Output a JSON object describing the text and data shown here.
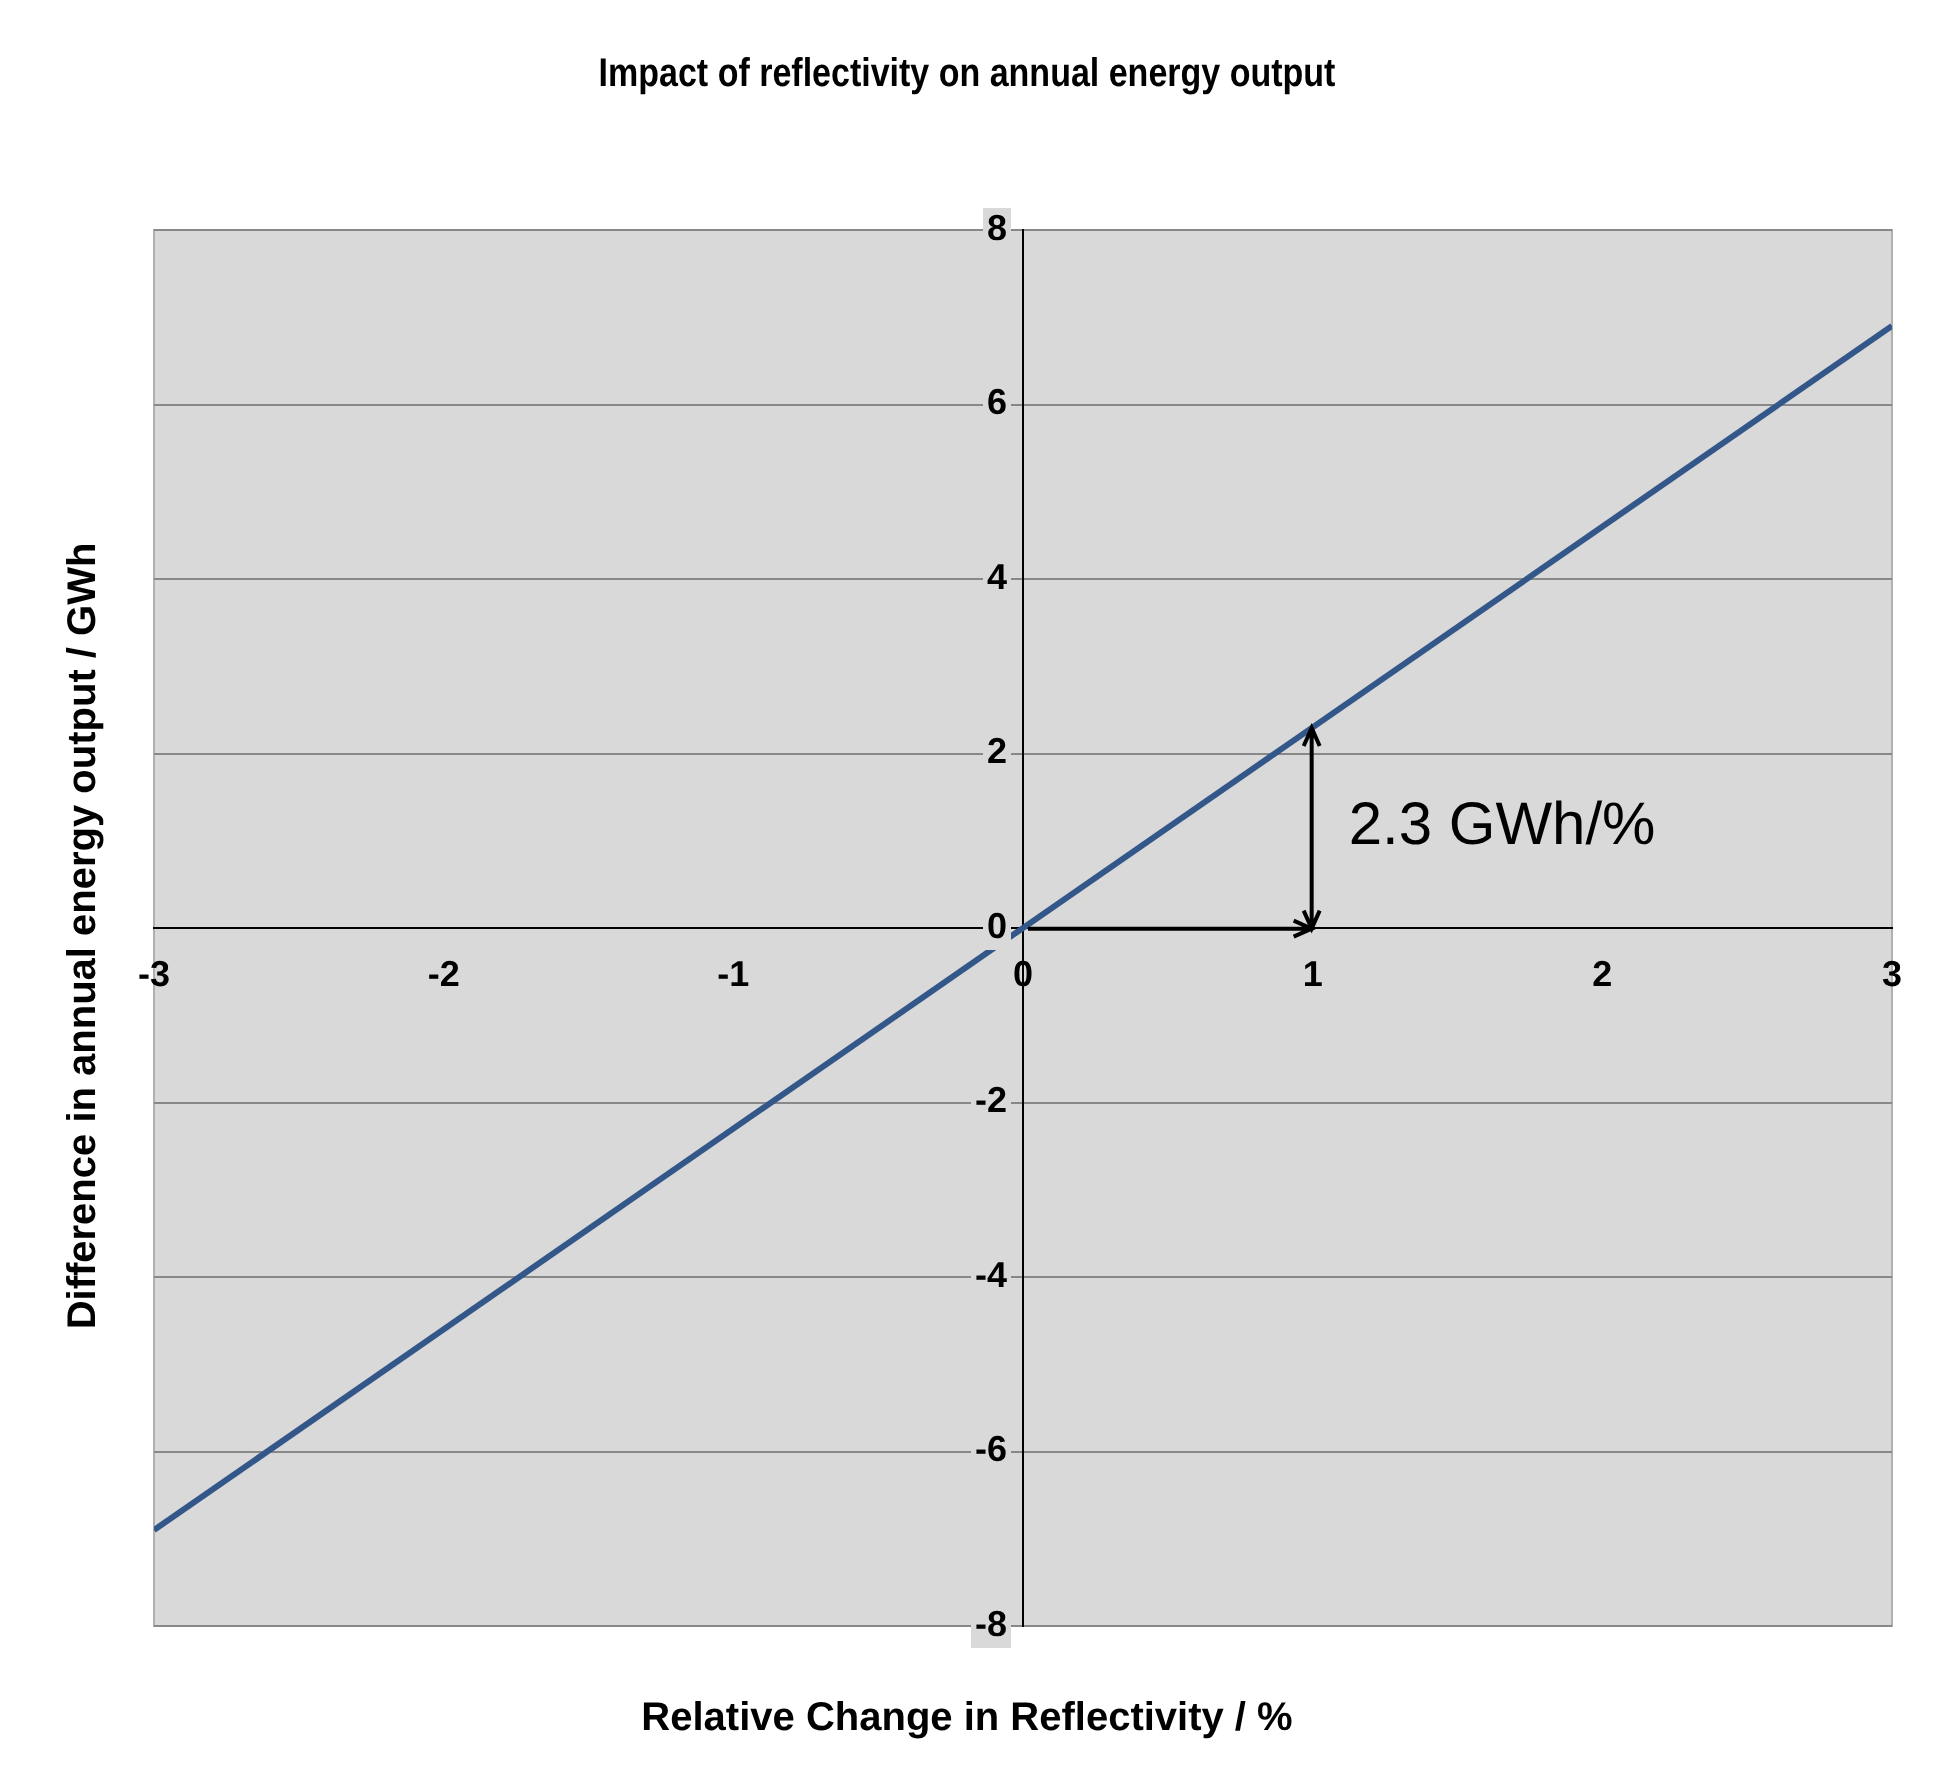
{
  "chart_data": {
    "type": "line",
    "title": "Impact of reflectivity on annual energy output",
    "xlabel": "Relative Change in Reflectivity / %",
    "ylabel": "Difference in annual energy output  / GWh",
    "x": [
      -3,
      3
    ],
    "series": [
      {
        "color": "#34578a",
        "values": [
          -6.9,
          6.9
        ]
      }
    ],
    "xlim": [
      -3,
      3
    ],
    "xticks": [
      -3,
      -2,
      -1,
      0,
      1,
      2,
      3
    ],
    "ylim": [
      -8,
      8
    ],
    "yticks": [
      -8,
      -6,
      -4,
      -2,
      0,
      2,
      4,
      6,
      8
    ],
    "grid": "y",
    "legend": false,
    "marker": "none",
    "line_style": "solid",
    "annotations": [
      {
        "text": "2.3 GWh/%",
        "x": 1,
        "y": 2.3
      }
    ]
  }
}
